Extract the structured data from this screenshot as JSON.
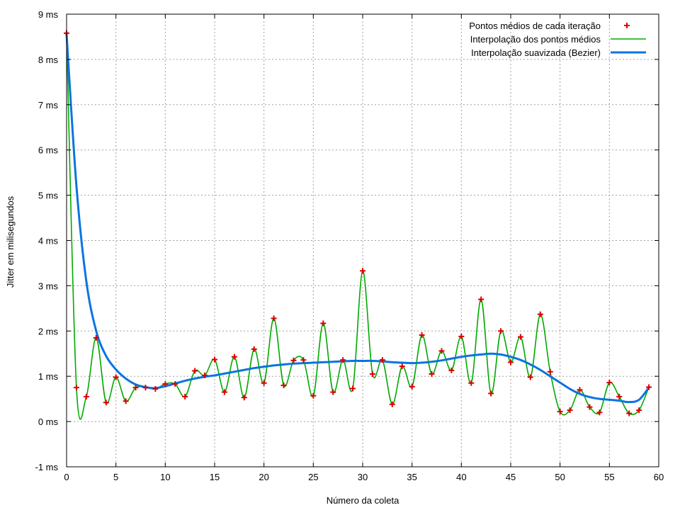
{
  "chart_data": {
    "type": "line",
    "xlabel": "Número da coleta",
    "ylabel": "Jitter em milisegundos",
    "xlim": [
      0,
      60
    ],
    "ylim": [
      -1,
      9
    ],
    "grid": true,
    "legend_position": "top-right",
    "x_ticks": [
      "0",
      "5",
      "10",
      "15",
      "20",
      "25",
      "30",
      "35",
      "40",
      "45",
      "50",
      "55",
      "60"
    ],
    "y_ticks": [
      "-1 ms",
      "0 ms",
      "1 ms",
      "2 ms",
      "3 ms",
      "4 ms",
      "5 ms",
      "6 ms",
      "7 ms",
      "8 ms",
      "9 ms"
    ],
    "legend": [
      "Pontos médios de cada iteração",
      "Interpolação dos pontos médios",
      "Interpolação suavizada (Bezier)"
    ],
    "colors": {
      "points": "#dd0000",
      "interp": "#00aa00",
      "bezier": "#0a74e0",
      "grid": "#a0a0a0"
    },
    "x": [
      0,
      1,
      2,
      3,
      4,
      5,
      6,
      7,
      8,
      9,
      10,
      11,
      12,
      13,
      14,
      15,
      16,
      17,
      18,
      19,
      20,
      21,
      22,
      23,
      24,
      25,
      26,
      27,
      28,
      29,
      30,
      31,
      32,
      33,
      34,
      35,
      36,
      37,
      38,
      39,
      40,
      41,
      42,
      43,
      44,
      45,
      46,
      47,
      48,
      49,
      50,
      51,
      52,
      53,
      54,
      55,
      56,
      57,
      58,
      59
    ],
    "points": [
      8.58,
      0.75,
      0.55,
      1.85,
      0.42,
      0.98,
      0.45,
      0.75,
      0.75,
      0.72,
      0.83,
      0.83,
      0.55,
      1.12,
      1.02,
      1.37,
      0.65,
      1.43,
      0.53,
      1.6,
      0.85,
      2.28,
      0.8,
      1.35,
      1.36,
      0.57,
      2.17,
      0.65,
      1.36,
      0.73,
      3.33,
      1.05,
      1.36,
      0.38,
      1.22,
      0.77,
      1.91,
      1.05,
      1.56,
      1.13,
      1.88,
      0.85,
      2.7,
      0.62,
      2.0,
      1.31,
      1.87,
      0.98,
      2.37,
      1.1,
      0.22,
      0.25,
      0.7,
      0.32,
      0.2,
      0.86,
      0.55,
      0.18,
      0.25,
      0.76
    ],
    "bezier": [
      8.55,
      5.2,
      3.1,
      2.0,
      1.45,
      1.15,
      0.95,
      0.82,
      0.76,
      0.74,
      0.78,
      0.84,
      0.9,
      0.95,
      0.99,
      1.02,
      1.06,
      1.1,
      1.14,
      1.18,
      1.21,
      1.24,
      1.26,
      1.28,
      1.29,
      1.3,
      1.31,
      1.32,
      1.33,
      1.34,
      1.34,
      1.34,
      1.33,
      1.31,
      1.3,
      1.29,
      1.3,
      1.32,
      1.35,
      1.39,
      1.43,
      1.46,
      1.48,
      1.5,
      1.48,
      1.43,
      1.36,
      1.26,
      1.14,
      1.0,
      0.86,
      0.72,
      0.61,
      0.54,
      0.5,
      0.48,
      0.46,
      0.43,
      0.48,
      0.75
    ]
  }
}
